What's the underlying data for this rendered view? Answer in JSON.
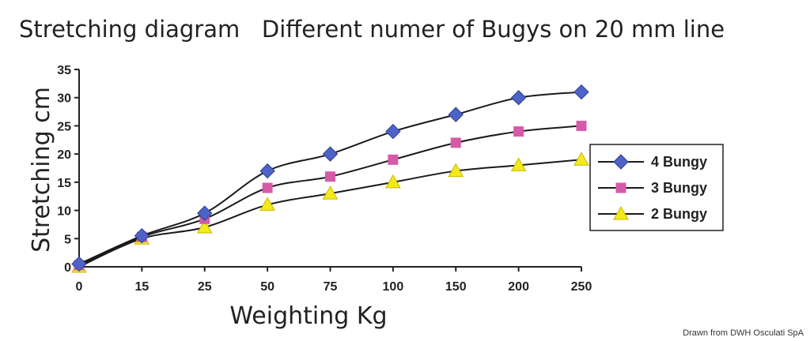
{
  "chart_data": {
    "type": "line",
    "title": "Stretching diagram   Different numer of Bugys on 20 mm line",
    "xlabel": "Weighting Kg",
    "ylabel": "Stretching cm",
    "categories": [
      "0",
      "15",
      "25",
      "50",
      "75",
      "100",
      "150",
      "200",
      "250"
    ],
    "yticks": [
      "0",
      "5",
      "10",
      "15",
      "20",
      "25",
      "30",
      "35"
    ],
    "ylim": [
      0,
      35
    ],
    "grid": false,
    "legend_position": "right",
    "series": [
      {
        "name": "4 Bungy",
        "marker": "diamond",
        "color": "#4d63c6",
        "values": [
          0.5,
          5.5,
          9.5,
          17,
          20,
          24,
          27,
          30,
          31
        ]
      },
      {
        "name": "3 Bungy",
        "marker": "square",
        "color": "#d65aa8",
        "values": [
          0.3,
          5.3,
          8.5,
          14,
          16,
          19,
          22,
          24,
          25
        ]
      },
      {
        "name": "2 Bungy",
        "marker": "triangle",
        "color": "#f2ea1a",
        "values": [
          0,
          5,
          7,
          11,
          13,
          15,
          17,
          18,
          19
        ]
      }
    ]
  },
  "credit": "Drawn from DWH Osculati SpA"
}
